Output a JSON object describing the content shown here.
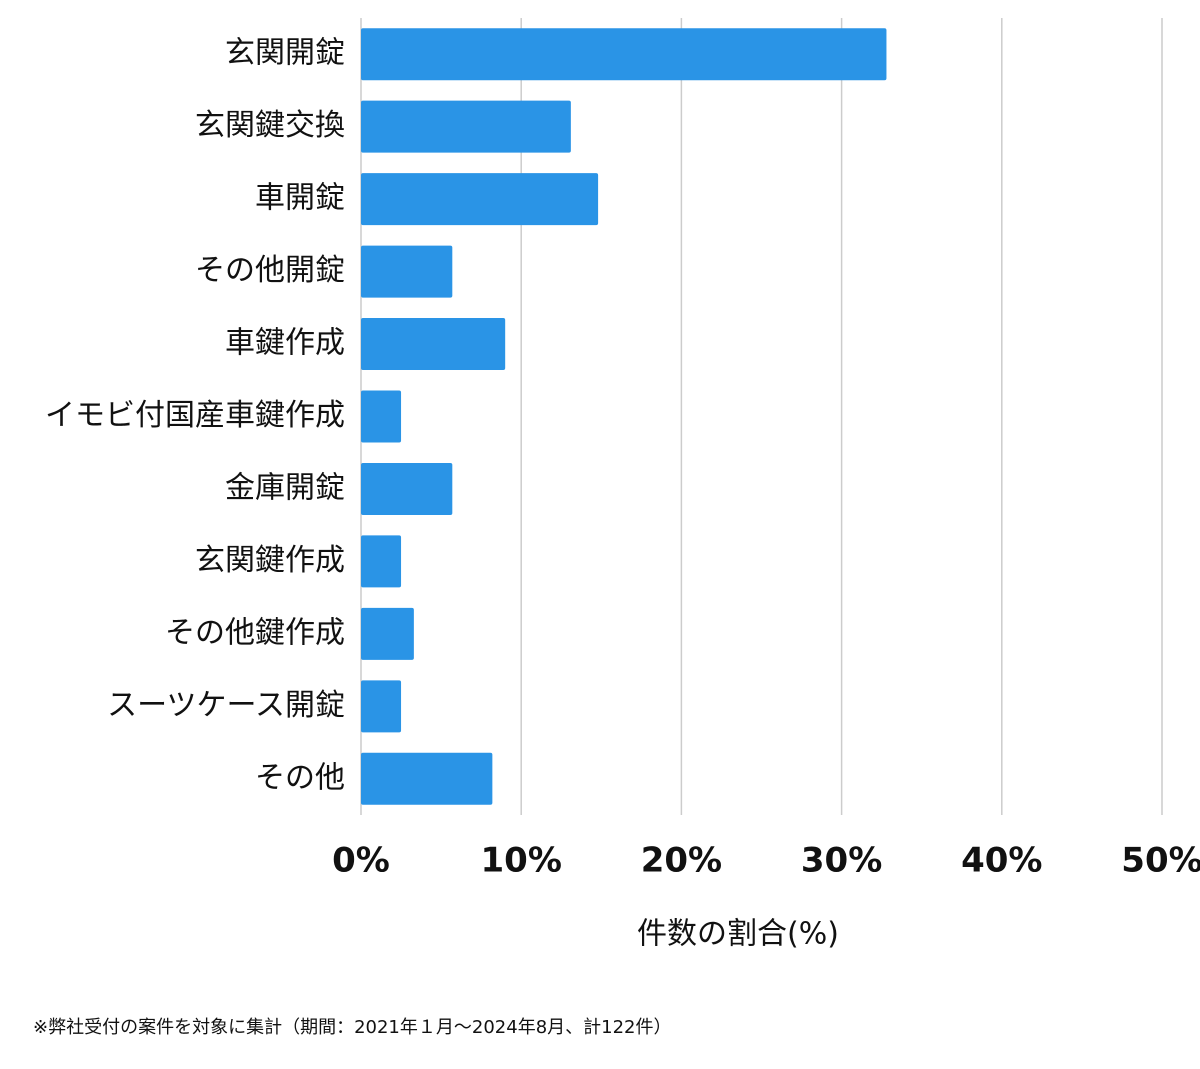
{
  "chart_data": {
    "type": "bar",
    "orientation": "horizontal",
    "categories": [
      "玄関開錠",
      "玄関鍵交換",
      "車開錠",
      "その他開錠",
      "車鍵作成",
      "イモビ付国産車鍵作成",
      "金庫開錠",
      "玄関鍵作成",
      "その他鍵作成",
      "スーツケース開錠",
      "その他"
    ],
    "values": [
      32.8,
      13.1,
      14.8,
      5.7,
      9.0,
      2.5,
      5.7,
      2.5,
      3.3,
      2.5,
      8.2
    ],
    "color": "#2a94e6",
    "xlim": [
      0,
      50
    ],
    "xticks": [
      {
        "value": 0,
        "label": "0%"
      },
      {
        "value": 10,
        "label": "10%"
      },
      {
        "value": 20,
        "label": "20%"
      },
      {
        "value": 30,
        "label": "30%"
      },
      {
        "value": 40,
        "label": "40%"
      },
      {
        "value": 50,
        "label": "50%"
      }
    ],
    "xlabel": "件数の割合(%)",
    "grid": true,
    "footnote": "※弊社受付の案件を対象に集計（期間：2021年１月～2024年8月、計122件）"
  }
}
